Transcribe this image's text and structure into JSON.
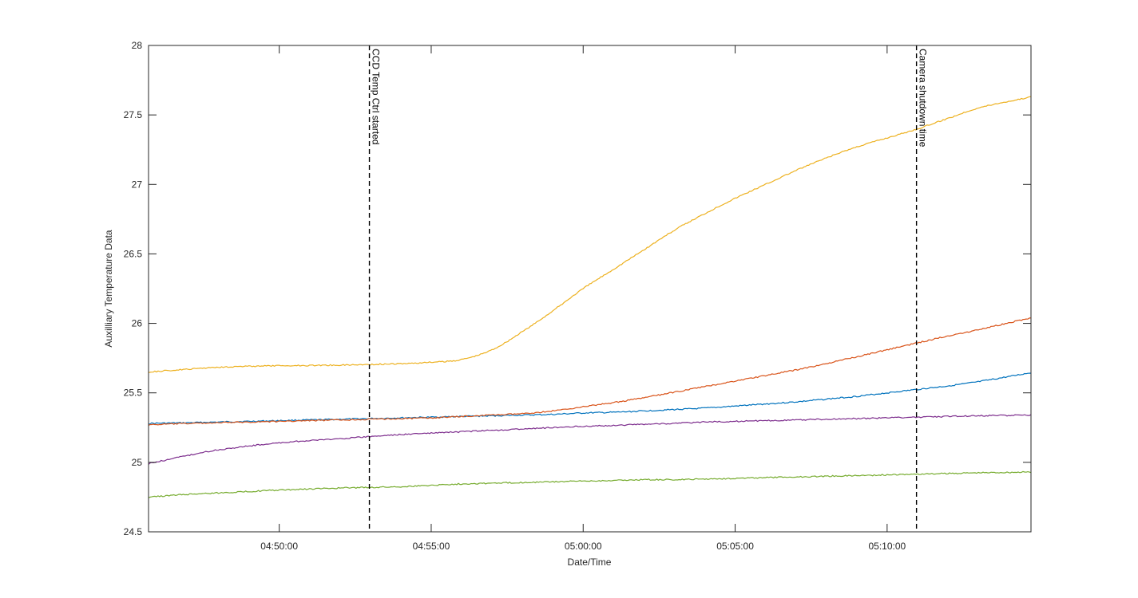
{
  "chart_data": {
    "type": "line",
    "title": "",
    "xlabel": "Date/Time",
    "ylabel": "Auxilliary Temperature Data",
    "xlim": [
      "04:45:42",
      "05:14:44"
    ],
    "ylim": [
      24.5,
      28
    ],
    "xticks": [
      "04:50:00",
      "04:55:00",
      "05:00:00",
      "05:05:00",
      "05:10:00"
    ],
    "yticks": [
      "24.5",
      "25",
      "25.5",
      "26",
      "26.5",
      "27",
      "27.5",
      "28"
    ],
    "grid": false,
    "legend": "none",
    "x": [
      "04:45:42",
      "04:47:00",
      "04:48:00",
      "04:50:00",
      "04:52:00",
      "04:54:00",
      "04:55:00",
      "04:56:00",
      "04:57:00",
      "04:58:00",
      "04:59:00",
      "05:00:00",
      "05:01:00",
      "05:02:00",
      "05:03:00",
      "05:04:00",
      "05:05:00",
      "05:06:00",
      "05:07:00",
      "05:08:00",
      "05:09:00",
      "05:10:00",
      "05:11:00",
      "05:12:00",
      "05:13:00",
      "05:14:44"
    ],
    "series": [
      {
        "color": "#0072BD",
        "values": [
          25.28,
          25.285,
          25.29,
          25.3,
          25.31,
          25.32,
          25.325,
          25.33,
          25.335,
          25.34,
          25.345,
          25.355,
          25.36,
          25.37,
          25.38,
          25.39,
          25.405,
          25.42,
          25.435,
          25.455,
          25.475,
          25.5,
          25.525,
          25.55,
          25.58,
          25.645
        ]
      },
      {
        "color": "#D95319",
        "values": [
          25.27,
          25.28,
          25.285,
          25.295,
          25.305,
          25.315,
          25.32,
          25.33,
          25.34,
          25.35,
          25.37,
          25.4,
          25.43,
          25.465,
          25.505,
          25.545,
          25.585,
          25.625,
          25.665,
          25.71,
          25.76,
          25.81,
          25.86,
          25.91,
          25.955,
          26.04
        ]
      },
      {
        "color": "#EDB120",
        "values": [
          25.65,
          25.67,
          25.685,
          25.695,
          25.7,
          25.71,
          25.72,
          25.74,
          25.81,
          25.94,
          26.09,
          26.25,
          26.39,
          26.53,
          26.67,
          26.79,
          26.9,
          27.0,
          27.1,
          27.19,
          27.27,
          27.335,
          27.4,
          27.475,
          27.55,
          27.63
        ]
      },
      {
        "color": "#7E2F8E",
        "values": [
          24.99,
          25.05,
          25.09,
          25.14,
          25.17,
          25.2,
          25.21,
          25.22,
          25.23,
          25.24,
          25.25,
          25.26,
          25.265,
          25.275,
          25.28,
          25.29,
          25.295,
          25.3,
          25.305,
          25.31,
          25.315,
          25.32,
          25.325,
          25.33,
          25.335,
          25.34
        ]
      },
      {
        "color": "#77AC30",
        "values": [
          24.75,
          24.77,
          24.78,
          24.8,
          24.815,
          24.825,
          24.835,
          24.845,
          24.85,
          24.855,
          24.86,
          24.865,
          24.87,
          24.875,
          24.875,
          24.88,
          24.885,
          24.89,
          24.895,
          24.9,
          24.905,
          24.91,
          24.915,
          24.92,
          24.925,
          24.93
        ]
      }
    ],
    "annotations": [
      {
        "x": "04:52:58",
        "label": "CCD Temp Ctrl started"
      },
      {
        "x": "05:10:58",
        "label": "Camera shutdown time"
      }
    ]
  }
}
